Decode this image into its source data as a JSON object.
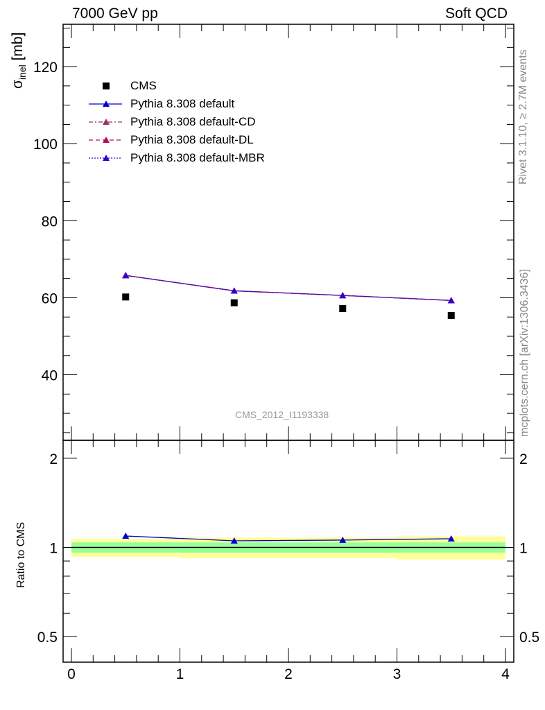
{
  "header": {
    "left": "7000 GeV pp",
    "right": "Soft QCD"
  },
  "side_notes": {
    "rivet": "Rivet 3.1.10, ≥ 2.7M events",
    "source": "mcplots.cern.ch [arXiv:1306.3436]"
  },
  "watermark": "CMS_2012_I1193338",
  "colors": {
    "data": "#000000",
    "default": "#0000cc",
    "default_cd": "#993366",
    "default_dl": "#aa1166",
    "default_mbr": "#3300cc",
    "band_inner": "#99ff99",
    "band_outer": "#ffff99"
  },
  "chart_data": [
    {
      "type": "scatter",
      "panel": "main",
      "ylabel": "σinel [mb]",
      "ylabel_main": "σ",
      "ylabel_sub": "inel",
      "ylabel_unit": " [mb]",
      "xlim": [
        0,
        4
      ],
      "ylim": [
        23,
        131
      ],
      "yticks": [
        40,
        60,
        80,
        100,
        120
      ],
      "legend_position": "top-left",
      "series": [
        {
          "name": "CMS",
          "style": "data",
          "x": [
            0.5,
            1.5,
            2.5,
            3.5
          ],
          "y": [
            60.2,
            58.7,
            57.2,
            55.4
          ]
        },
        {
          "name": "Pythia 8.308 default",
          "style": "default",
          "x": [
            0.5,
            1.5,
            2.5,
            3.5
          ],
          "y": [
            65.8,
            61.8,
            60.6,
            59.3
          ]
        },
        {
          "name": "Pythia 8.308 default-CD",
          "style": "default_cd",
          "x": [
            0.5,
            1.5,
            2.5,
            3.5
          ],
          "y": [
            65.8,
            61.8,
            60.6,
            59.3
          ]
        },
        {
          "name": "Pythia 8.308 default-DL",
          "style": "default_dl",
          "x": [
            0.5,
            1.5,
            2.5,
            3.5
          ],
          "y": [
            65.8,
            61.8,
            60.6,
            59.3
          ]
        },
        {
          "name": "Pythia 8.308 default-MBR",
          "style": "default_mbr",
          "x": [
            0.5,
            1.5,
            2.5,
            3.5
          ],
          "y": [
            65.8,
            61.8,
            60.6,
            59.3
          ]
        }
      ]
    },
    {
      "type": "line",
      "panel": "ratio",
      "ylabel": "Ratio to CMS",
      "xlim": [
        0,
        4
      ],
      "ylim": [
        0.41,
        2.3
      ],
      "log_y": true,
      "yticks": [
        0.5,
        1,
        2
      ],
      "xticks": [
        0,
        1,
        2,
        3,
        4
      ],
      "bands": [
        {
          "x": [
            0,
            1
          ],
          "inner": [
            0.96,
            1.04
          ],
          "outer": [
            0.93,
            1.07
          ]
        },
        {
          "x": [
            1,
            2
          ],
          "inner": [
            0.96,
            1.04
          ],
          "outer": [
            0.92,
            1.08
          ]
        },
        {
          "x": [
            2,
            3
          ],
          "inner": [
            0.96,
            1.04
          ],
          "outer": [
            0.92,
            1.08
          ]
        },
        {
          "x": [
            3,
            4
          ],
          "inner": [
            0.96,
            1.04
          ],
          "outer": [
            0.91,
            1.09
          ]
        }
      ],
      "series": [
        {
          "name": "Pythia 8.308 default",
          "style": "default",
          "x": [
            0.5,
            1.5,
            2.5,
            3.5
          ],
          "y": [
            1.093,
            1.053,
            1.059,
            1.07
          ]
        }
      ]
    }
  ]
}
